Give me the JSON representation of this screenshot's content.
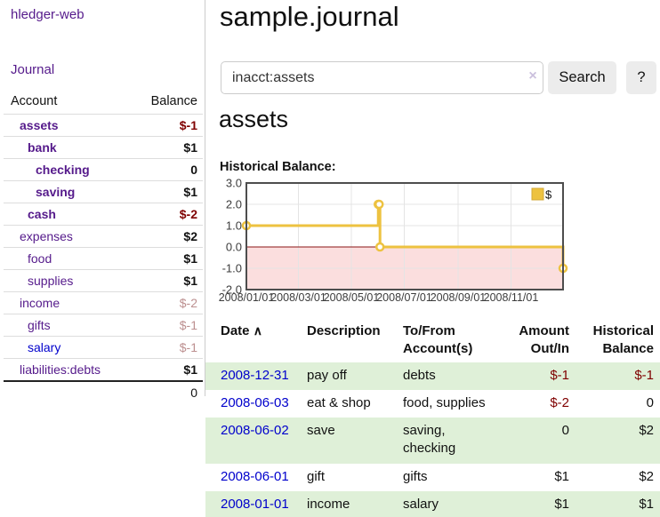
{
  "colors": {
    "link_purple": "#551a8b",
    "link_blue": "#0000cc",
    "negative_strong": "#7f0000",
    "negative_muted": "#bc8f8f",
    "row_stripe_green": "#dff0d8",
    "chart_line_gold": "#edc240",
    "chart_negative_region_pink": "#fbdede",
    "chart_zero_line_red": "#8b1414",
    "chart_border_gray": "#4d4d4d"
  },
  "sidebar": {
    "brand": "hledger-web",
    "journal_link": "Journal",
    "accounts": {
      "header_account": "Account",
      "header_balance": "Balance",
      "rows": [
        {
          "name": "assets",
          "balance": "$-1"
        },
        {
          "name": "bank",
          "balance": "$1"
        },
        {
          "name": "checking",
          "balance": "0"
        },
        {
          "name": "saving",
          "balance": "$1"
        },
        {
          "name": "cash",
          "balance": "$-2"
        },
        {
          "name": "expenses",
          "balance": "$2"
        },
        {
          "name": "food",
          "balance": "$1"
        },
        {
          "name": "supplies",
          "balance": "$1"
        },
        {
          "name": "income",
          "balance": "$-2"
        },
        {
          "name": "gifts",
          "balance": "$-1"
        },
        {
          "name": "salary",
          "balance": "$-1"
        },
        {
          "name": "liabilities:debts",
          "balance": "$1"
        }
      ],
      "total": "0"
    }
  },
  "main": {
    "title": "sample.journal",
    "search": {
      "value": "inacct:assets",
      "clear_icon": "×",
      "button_label": "Search",
      "help_label": "?"
    },
    "account_heading": "assets",
    "chart_label": "Historical Balance:"
  },
  "chart_data": {
    "type": "line",
    "title": "Historical Balance",
    "legend": "$",
    "step": true,
    "ylim": [
      -2,
      3
    ],
    "y_ticks": [
      "3.0",
      "2.0",
      "1.0",
      "0.0",
      "-1.0",
      "-2.0"
    ],
    "x_ticks": [
      "2008/01/01",
      "2008/03/01",
      "2008/05/01",
      "2008/07/01",
      "2008/09/01",
      "2008/11/01"
    ],
    "x_range": [
      "2008-01-01",
      "2008-12-31"
    ],
    "points": [
      {
        "date": "2008-01-01",
        "value": 1
      },
      {
        "date": "2008-06-01",
        "value": 2
      },
      {
        "date": "2008-06-02",
        "value": 2
      },
      {
        "date": "2008-06-03",
        "value": 0
      },
      {
        "date": "2008-12-31",
        "value": -1
      }
    ],
    "negative_region_shaded": true,
    "grid": true,
    "legend_position": "top-right"
  },
  "register": {
    "headers": {
      "date": "Date",
      "sort_icon": "∧",
      "description": "Description",
      "account": "To/From Account(s)",
      "amount": "Amount Out/In",
      "balance": "Historical Balance"
    },
    "rows": [
      {
        "date": "2008-12-31",
        "description": "pay off",
        "accounts": "debts",
        "amount": "$-1",
        "balance": "$-1"
      },
      {
        "date": "2008-06-03",
        "description": "eat & shop",
        "accounts": "food, supplies",
        "amount": "$-2",
        "balance": "0"
      },
      {
        "date": "2008-06-02",
        "description": "save",
        "accounts": "saving, checking",
        "amount": "0",
        "balance": "$2"
      },
      {
        "date": "2008-06-01",
        "description": "gift",
        "accounts": "gifts",
        "amount": "$1",
        "balance": "$2"
      },
      {
        "date": "2008-01-01",
        "description": "income",
        "accounts": "salary",
        "amount": "$1",
        "balance": "$1"
      }
    ]
  }
}
